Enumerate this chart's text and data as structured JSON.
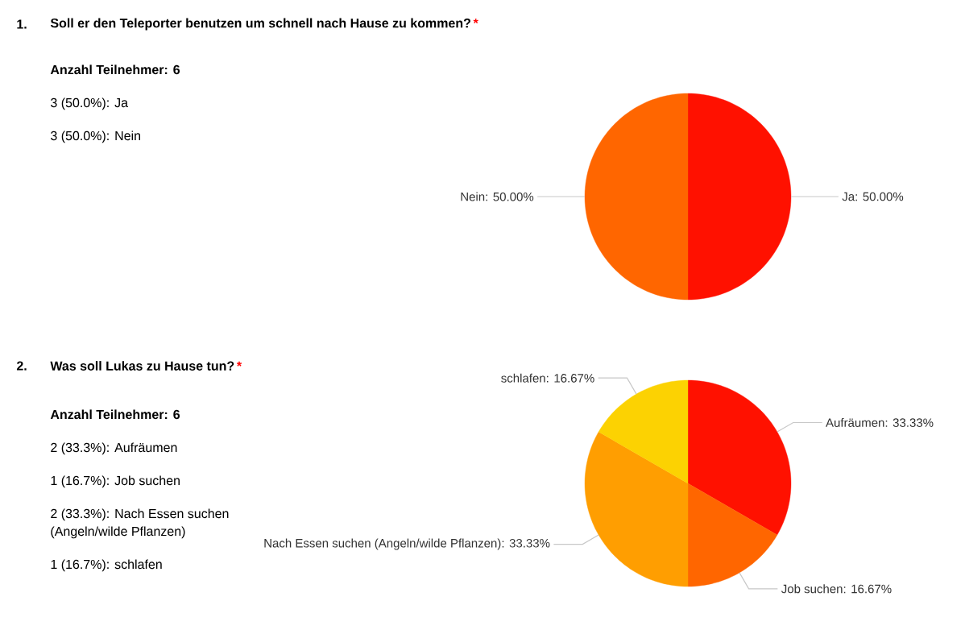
{
  "chart_data": [
    {
      "type": "pie",
      "title": "Soll er den Teleporter benutzen um schnell nach Hause zu kommen?",
      "annotations": [
        "1.",
        "*",
        "Anzahl Teilnehmer: 6",
        "3 (50.0%): Ja",
        "3 (50.0%): Nein"
      ],
      "categories": [
        "Ja",
        "Nein"
      ],
      "values": [
        50,
        50
      ],
      "colors": [
        "#ff1100",
        "#ff6600"
      ],
      "value_labels": [
        ": 50.00%",
        ": 50.00%"
      ]
    },
    {
      "type": "pie",
      "title": "Was soll Lukas zu Hause tun?",
      "annotations": [
        "2.",
        "*",
        "Anzahl Teilnehmer: 6",
        "2 (33.3%): Aufräumen",
        "1 (16.7%): Job suchen",
        "2 (33.3%): Nach Essen suchen (Angeln/wilde Pflanzen)",
        "1 (16.7%): schlafen"
      ],
      "categories": [
        "Aufräumen",
        "Job suchen",
        "Nach Essen suchen (Angeln/wilde Pflanzen)",
        "schlafen"
      ],
      "values": [
        33.33,
        16.67,
        33.33,
        16.67
      ],
      "colors": [
        "#ff1100",
        "#ff6600",
        "#ff9e01",
        "#fcd202"
      ],
      "value_labels": [
        ": 33.33%",
        ": 16.67%",
        ": 33.33%",
        ": 16.67%"
      ]
    }
  ]
}
